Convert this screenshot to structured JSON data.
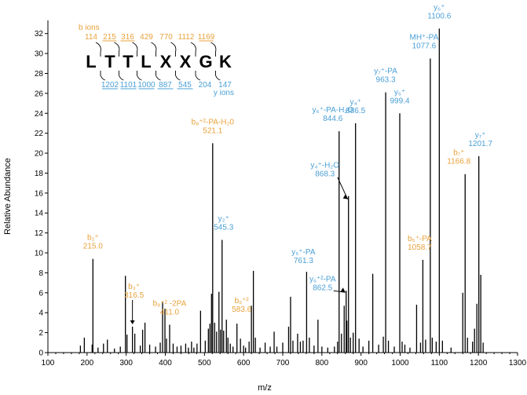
{
  "chart_data": {
    "type": "bar",
    "title": "",
    "xlabel": "m/z",
    "ylabel": "Relative Abundance",
    "xlim": [
      100,
      1300
    ],
    "ylim": [
      0,
      33
    ],
    "xticks": [
      100,
      200,
      300,
      400,
      500,
      600,
      700,
      800,
      900,
      1000,
      1100,
      1200,
      1300
    ],
    "yticks": [
      0,
      2,
      4,
      6,
      8,
      10,
      12,
      14,
      16,
      18,
      20,
      22,
      24,
      26,
      28,
      30,
      32
    ],
    "peaks": [
      {
        "mz": 183,
        "i": 0.7
      },
      {
        "mz": 193,
        "i": 1.5
      },
      {
        "mz": 213,
        "i": 0.8
      },
      {
        "mz": 215,
        "i": 9.4
      },
      {
        "mz": 228,
        "i": 0.5
      },
      {
        "mz": 242,
        "i": 0.9
      },
      {
        "mz": 252,
        "i": 1.3
      },
      {
        "mz": 270,
        "i": 0.4
      },
      {
        "mz": 285,
        "i": 0.6
      },
      {
        "mz": 298,
        "i": 7.7
      },
      {
        "mz": 302,
        "i": 1.8
      },
      {
        "mz": 316,
        "i": 2.6
      },
      {
        "mz": 322,
        "i": 1.9
      },
      {
        "mz": 336,
        "i": 0.7
      },
      {
        "mz": 342,
        "i": 2.3
      },
      {
        "mz": 348,
        "i": 3.0
      },
      {
        "mz": 360,
        "i": 0.8
      },
      {
        "mz": 375,
        "i": 0.6
      },
      {
        "mz": 387,
        "i": 1.0
      },
      {
        "mz": 393,
        "i": 5.1
      },
      {
        "mz": 399,
        "i": 4.4
      },
      {
        "mz": 403,
        "i": 1.4
      },
      {
        "mz": 411,
        "i": 2.8
      },
      {
        "mz": 420,
        "i": 0.9
      },
      {
        "mz": 430,
        "i": 0.6
      },
      {
        "mz": 440,
        "i": 0.7
      },
      {
        "mz": 452,
        "i": 0.9
      },
      {
        "mz": 459,
        "i": 0.5
      },
      {
        "mz": 467,
        "i": 1.1
      },
      {
        "mz": 473,
        "i": 0.5
      },
      {
        "mz": 481,
        "i": 0.9
      },
      {
        "mz": 490,
        "i": 4.2
      },
      {
        "mz": 502,
        "i": 1.2
      },
      {
        "mz": 510,
        "i": 2.4
      },
      {
        "mz": 514,
        "i": 2.9
      },
      {
        "mz": 518,
        "i": 5.9
      },
      {
        "mz": 521,
        "i": 21.0
      },
      {
        "mz": 526,
        "i": 3.0
      },
      {
        "mz": 531,
        "i": 2.1
      },
      {
        "mz": 537,
        "i": 6.1
      },
      {
        "mz": 541,
        "i": 2.3
      },
      {
        "mz": 545,
        "i": 11.3
      },
      {
        "mz": 549,
        "i": 2.2
      },
      {
        "mz": 556,
        "i": 3.3
      },
      {
        "mz": 560,
        "i": 1.5
      },
      {
        "mz": 566,
        "i": 0.9
      },
      {
        "mz": 573,
        "i": 0.6
      },
      {
        "mz": 583,
        "i": 2.9
      },
      {
        "mz": 592,
        "i": 1.4
      },
      {
        "mz": 600,
        "i": 0.7
      },
      {
        "mz": 605,
        "i": 0.5
      },
      {
        "mz": 614,
        "i": 1.1
      },
      {
        "mz": 620,
        "i": 4.7
      },
      {
        "mz": 625,
        "i": 8.2
      },
      {
        "mz": 630,
        "i": 1.5
      },
      {
        "mz": 642,
        "i": 0.5
      },
      {
        "mz": 655,
        "i": 1.0
      },
      {
        "mz": 668,
        "i": 0.6
      },
      {
        "mz": 678,
        "i": 2.1
      },
      {
        "mz": 685,
        "i": 0.6
      },
      {
        "mz": 700,
        "i": 1.0
      },
      {
        "mz": 715,
        "i": 2.6
      },
      {
        "mz": 720,
        "i": 5.6
      },
      {
        "mz": 726,
        "i": 1.2
      },
      {
        "mz": 738,
        "i": 1.9
      },
      {
        "mz": 745,
        "i": 1.1
      },
      {
        "mz": 752,
        "i": 1.2
      },
      {
        "mz": 761,
        "i": 8.1
      },
      {
        "mz": 768,
        "i": 1.5
      },
      {
        "mz": 780,
        "i": 0.7
      },
      {
        "mz": 790,
        "i": 3.3
      },
      {
        "mz": 800,
        "i": 0.6
      },
      {
        "mz": 815,
        "i": 0.5
      },
      {
        "mz": 832,
        "i": 0.6
      },
      {
        "mz": 840,
        "i": 1.1
      },
      {
        "mz": 844,
        "i": 22.2
      },
      {
        "mz": 850,
        "i": 1.9
      },
      {
        "mz": 857,
        "i": 4.7
      },
      {
        "mz": 862,
        "i": 6.2
      },
      {
        "mz": 864,
        "i": 3.2
      },
      {
        "mz": 868,
        "i": 15.7
      },
      {
        "mz": 873,
        "i": 1.5
      },
      {
        "mz": 880,
        "i": 2.0
      },
      {
        "mz": 886,
        "i": 23.0
      },
      {
        "mz": 895,
        "i": 1.4
      },
      {
        "mz": 905,
        "i": 0.6
      },
      {
        "mz": 920,
        "i": 1.2
      },
      {
        "mz": 930,
        "i": 7.9
      },
      {
        "mz": 945,
        "i": 0.8
      },
      {
        "mz": 957,
        "i": 1.6
      },
      {
        "mz": 963,
        "i": 26.1
      },
      {
        "mz": 970,
        "i": 1.2
      },
      {
        "mz": 985,
        "i": 0.6
      },
      {
        "mz": 999,
        "i": 24.0
      },
      {
        "mz": 1005,
        "i": 1.1
      },
      {
        "mz": 1012,
        "i": 0.8
      },
      {
        "mz": 1025,
        "i": 0.5
      },
      {
        "mz": 1042,
        "i": 4.8
      },
      {
        "mz": 1052,
        "i": 1.0
      },
      {
        "mz": 1058,
        "i": 9.3
      },
      {
        "mz": 1065,
        "i": 1.3
      },
      {
        "mz": 1077,
        "i": 29.5
      },
      {
        "mz": 1082,
        "i": 1.5
      },
      {
        "mz": 1092,
        "i": 1.1
      },
      {
        "mz": 1100,
        "i": 32.5
      },
      {
        "mz": 1108,
        "i": 1.2
      },
      {
        "mz": 1130,
        "i": 0.5
      },
      {
        "mz": 1160,
        "i": 6.0
      },
      {
        "mz": 1166,
        "i": 17.9
      },
      {
        "mz": 1172,
        "i": 1.5
      },
      {
        "mz": 1185,
        "i": 1.1
      },
      {
        "mz": 1190,
        "i": 2.4
      },
      {
        "mz": 1196,
        "i": 4.9
      },
      {
        "mz": 1201,
        "i": 19.7
      },
      {
        "mz": 1206,
        "i": 7.8
      },
      {
        "mz": 1212,
        "i": 1.0
      }
    ],
    "annotations": [
      {
        "lines": [
          "b₂⁺",
          "215.0"
        ],
        "type": "b",
        "mz": 215,
        "i": 9.4
      },
      {
        "lines": [
          "b₃⁺",
          "316.5"
        ],
        "type": "b",
        "mz": 316,
        "i": 2.6
      },
      {
        "lines": [
          "b₈⁺² -2PA",
          "411.0"
        ],
        "type": "b",
        "mz": 411,
        "i": 2.8
      },
      {
        "lines": [
          "b₈⁺²-PA-H₂0",
          "521.1"
        ],
        "type": "b",
        "mz": 521,
        "i": 21.0
      },
      {
        "lines": [
          "y₂⁺",
          "545.3"
        ],
        "type": "y",
        "mz": 545,
        "i": 11.3
      },
      {
        "lines": [
          "b₉⁺²",
          "583.6"
        ],
        "type": "b",
        "mz": 583,
        "i": 2.9
      },
      {
        "lines": [
          "y₅⁺-PA",
          "761.3"
        ],
        "type": "y",
        "mz": 761,
        "i": 8.1
      },
      {
        "lines": [
          "y₆⁺²-PA",
          "862.5"
        ],
        "type": "y",
        "mz": 862,
        "i": 6.2
      },
      {
        "lines": [
          "y₆⁺-PA-H₂O",
          "844.6"
        ],
        "type": "y",
        "mz": 844,
        "i": 22.2
      },
      {
        "lines": [
          "y₄⁺-H₂O",
          "868.3"
        ],
        "type": "y",
        "mz": 868,
        "i": 15.7
      },
      {
        "lines": [
          "y₄⁺",
          "886.5"
        ],
        "type": "y",
        "mz": 886,
        "i": 23.0
      },
      {
        "lines": [
          "y₇⁺-PA",
          "963.3"
        ],
        "type": "y",
        "mz": 963,
        "i": 26.1
      },
      {
        "lines": [
          "y₅⁺",
          "999.4"
        ],
        "type": "y",
        "mz": 999,
        "i": 24.0
      },
      {
        "lines": [
          "b₅⁺-PA",
          "1058.7"
        ],
        "type": "b",
        "mz": 1058,
        "i": 9.3
      },
      {
        "lines": [
          "MH⁺-PA",
          "1077.6"
        ],
        "type": "y",
        "mz": 1077,
        "i": 29.5
      },
      {
        "lines": [
          "y₆⁺",
          "1100.6"
        ],
        "type": "y",
        "mz": 1100,
        "i": 32.5
      },
      {
        "lines": [
          "b₇⁺",
          "1166.8"
        ],
        "type": "b",
        "mz": 1166,
        "i": 17.9
      },
      {
        "lines": [
          "y₇⁺",
          "1201.7"
        ],
        "type": "y",
        "mz": 1201,
        "i": 19.7
      }
    ],
    "sequence": {
      "letters": [
        "L",
        "T",
        "T",
        "L",
        "X",
        "X",
        "G",
        "K"
      ],
      "b_label": "b ions",
      "y_label": "y ions",
      "b_ions": [
        "114",
        "215",
        "316",
        "429",
        "770",
        "1112",
        "1169"
      ],
      "b_underlined": [
        false,
        true,
        true,
        false,
        false,
        false,
        true
      ],
      "y_ions": [
        "1202",
        "1101",
        "1000",
        "887",
        "545",
        "204",
        "147"
      ],
      "y_underlined": [
        true,
        true,
        true,
        true,
        true,
        false,
        false
      ]
    },
    "colors": {
      "b_ion": "#e8a23c",
      "y_ion": "#4a9fd6",
      "peak": "#000000"
    }
  }
}
